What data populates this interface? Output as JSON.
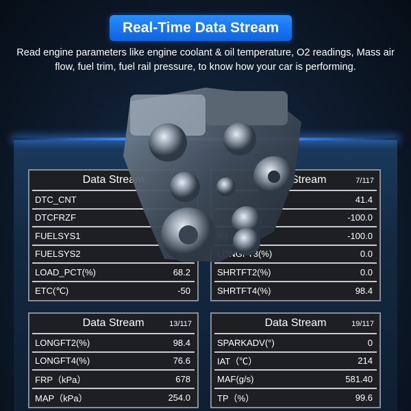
{
  "header": {
    "title": "Real-Time Data Stream",
    "subtitle": "Read engine parameters like engine coolant & oil temperature, O2 readings, Mass air flow, fuel trim, fuel rail pressure, to know how your car is performing."
  },
  "colors": {
    "accent": "#1a7af5",
    "panel_bg": "#1e1f22",
    "background": "#0e1c2e"
  },
  "panels": [
    {
      "title": "Data Stream",
      "page": "",
      "rows": [
        {
          "label": "DTC_CNT",
          "value": ""
        },
        {
          "label": "DTCFRZF",
          "value": ""
        },
        {
          "label": "FUELSYS1",
          "value": ""
        },
        {
          "label": "FUELSYS2",
          "value": ""
        },
        {
          "label": "LOAD_PCT(%)",
          "value": "68.2"
        },
        {
          "label": "ETC(℃)",
          "value": "-50"
        }
      ]
    },
    {
      "title": "Data Stream",
      "page": "7/117",
      "rows": [
        {
          "label": "",
          "value": "41.4"
        },
        {
          "label": "",
          "value": "-100.0"
        },
        {
          "label": "%)",
          "value": "-100.0"
        },
        {
          "label": "LONGFT3(%)",
          "value": "0.0"
        },
        {
          "label": "SHRTFT2(%)",
          "value": "0.0"
        },
        {
          "label": "SHRTFT4(%)",
          "value": "98.4"
        }
      ]
    },
    {
      "title": "Data Stream",
      "page": "13/117",
      "rows": [
        {
          "label": "LONGFT2(%)",
          "value": "98.4"
        },
        {
          "label": "LONGFT4(%)",
          "value": "76.6"
        },
        {
          "label": "FRP（kPa）",
          "value": "678"
        },
        {
          "label": "MAP（kPa）",
          "value": "254.0"
        }
      ]
    },
    {
      "title": "Data Stream",
      "page": "19/117",
      "rows": [
        {
          "label": "SPARKADV(°)",
          "value": "0"
        },
        {
          "label": "IAT（℃）",
          "value": "214"
        },
        {
          "label": "MAF(g/s)",
          "value": "581.40"
        },
        {
          "label": "TP（%）",
          "value": "99.6"
        }
      ]
    }
  ]
}
